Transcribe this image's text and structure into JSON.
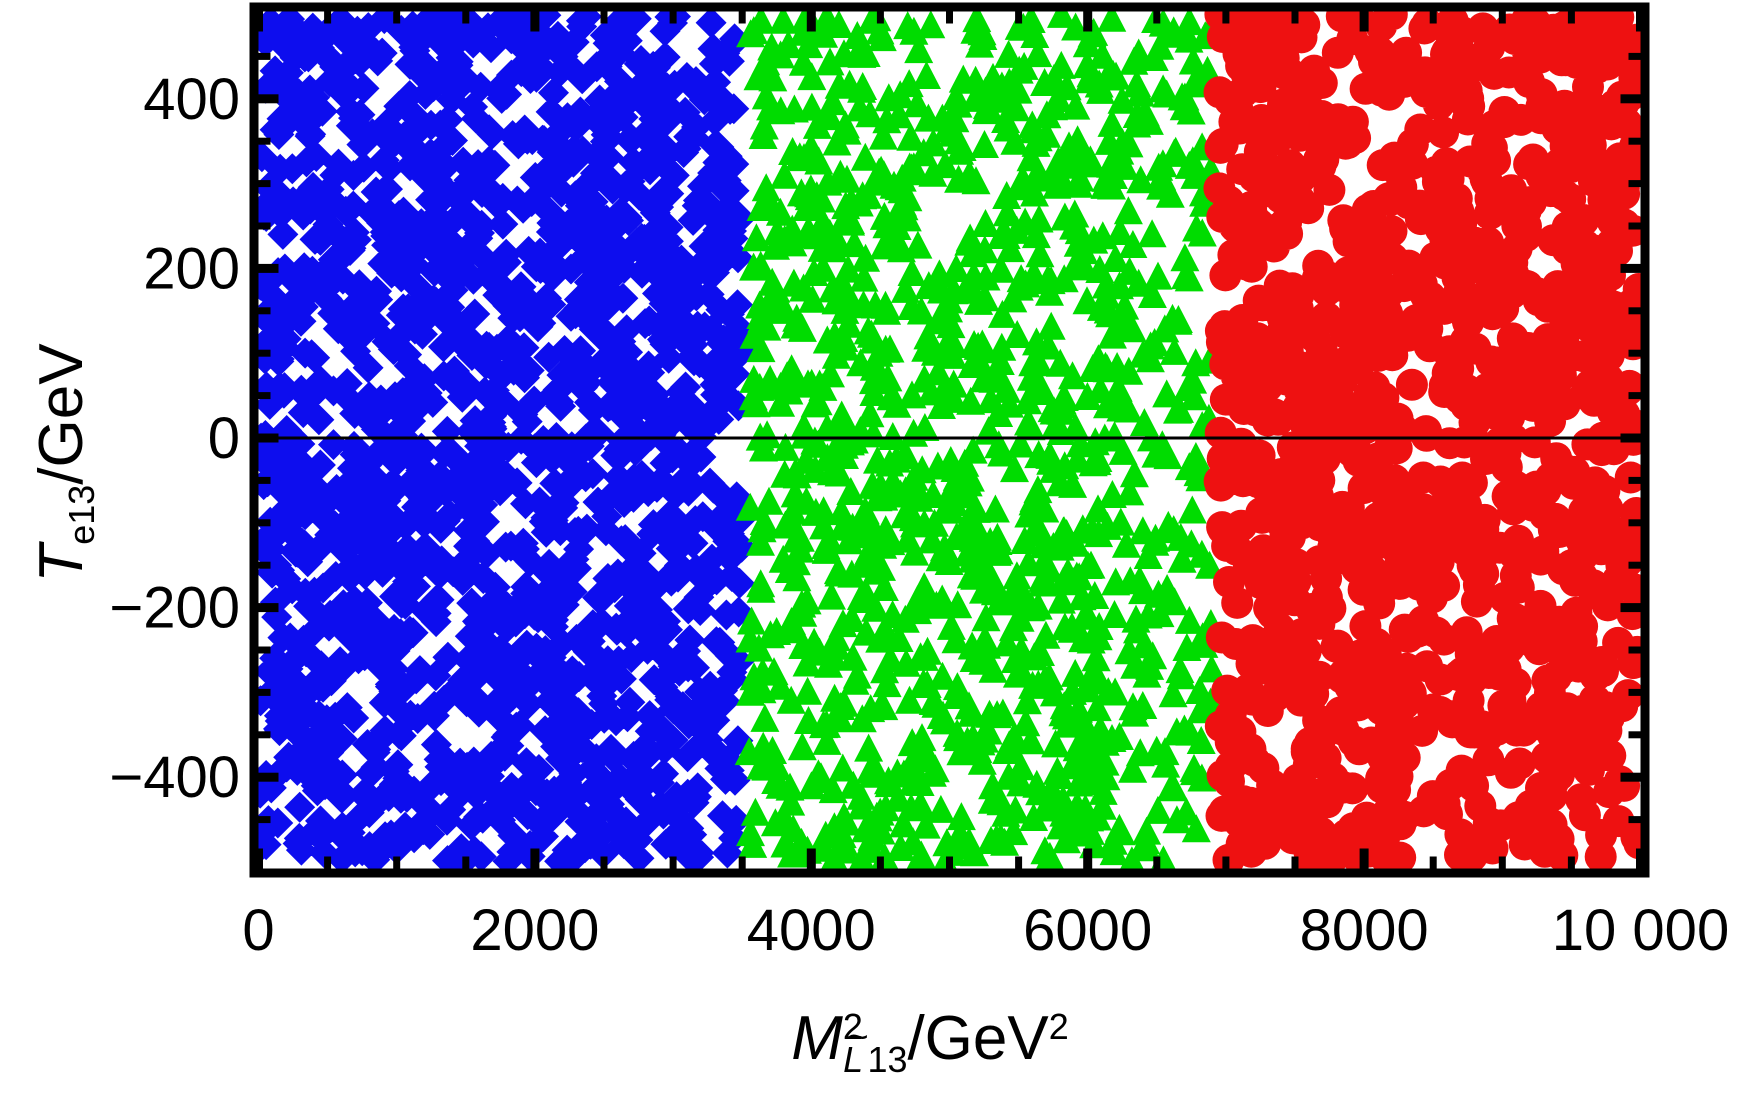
{
  "figure": {
    "background": "#FFFFFF",
    "frame_color": "#000000",
    "tick_color": "#000000",
    "text_color": "#000000",
    "zero_line_color": "#000000"
  },
  "labels": {
    "x": {
      "var": "M",
      "var_sup": "2",
      "sub_letter": "L",
      "sub_tilde": "~",
      "sub_index": "13",
      "unit": "/GeV",
      "unit_sup": "2"
    },
    "y": {
      "var": "T",
      "var_sub": "e13",
      "unit": "/GeV"
    }
  },
  "axes": {
    "x": {
      "range": [
        0,
        10000
      ],
      "minor_step": 500,
      "ticks": [
        {
          "value": 0,
          "label": "0"
        },
        {
          "value": 2000,
          "label": "2000"
        },
        {
          "value": 4000,
          "label": "4000"
        },
        {
          "value": 6000,
          "label": "6000"
        },
        {
          "value": 8000,
          "label": "8000"
        },
        {
          "value": 10000,
          "label": "10 000"
        }
      ]
    },
    "y": {
      "range": [
        -505,
        505
      ],
      "minor_step": 50,
      "ticks": [
        {
          "value": 400,
          "label": "400"
        },
        {
          "value": 200,
          "label": "200"
        },
        {
          "value": 0,
          "label": "0"
        },
        {
          "value": -200,
          "label": "−200"
        },
        {
          "value": -400,
          "label": "−400"
        }
      ]
    }
  },
  "chart_data": {
    "type": "scatter",
    "title": "",
    "xlabel": "M^2_{L~ 13}/GeV^2",
    "ylabel": "T_{e13}/GeV",
    "xlim": [
      0,
      10000
    ],
    "ylim": [
      -505,
      505
    ],
    "grid": false,
    "legend": false,
    "frame": true,
    "zero_line_y": 0,
    "description": "Three dense vertical bands of uniformly random scatter points filling the full T_e13 range of -500 to 500 GeV: blue diamonds for M^2_L13 from 0 to ~3500 GeV^2, green upward triangles from ~3550 to ~6900 GeV^2, red filled circles from ~6950 to 10000 GeV^2. A thin black horizontal line marks T_e13 = 0.",
    "series": [
      {
        "name": "blue-diamond-band",
        "marker": "diamond",
        "color": "#0D0DEE",
        "x_range": [
          0,
          3500
        ],
        "y_range": [
          -500,
          500
        ],
        "n_points": 1700,
        "distribution": "uniform",
        "seed": 101
      },
      {
        "name": "green-triangle-band",
        "marker": "triangle-up",
        "color": "#00DC00",
        "x_range": [
          3550,
          6900
        ],
        "y_range": [
          -500,
          500
        ],
        "n_points": 1150,
        "distribution": "uniform",
        "seed": 202
      },
      {
        "name": "red-circle-band",
        "marker": "circle",
        "color": "#EE1111",
        "x_range": [
          6950,
          10000
        ],
        "y_range": [
          -500,
          500
        ],
        "n_points": 1100,
        "distribution": "uniform",
        "seed": 303
      }
    ]
  }
}
